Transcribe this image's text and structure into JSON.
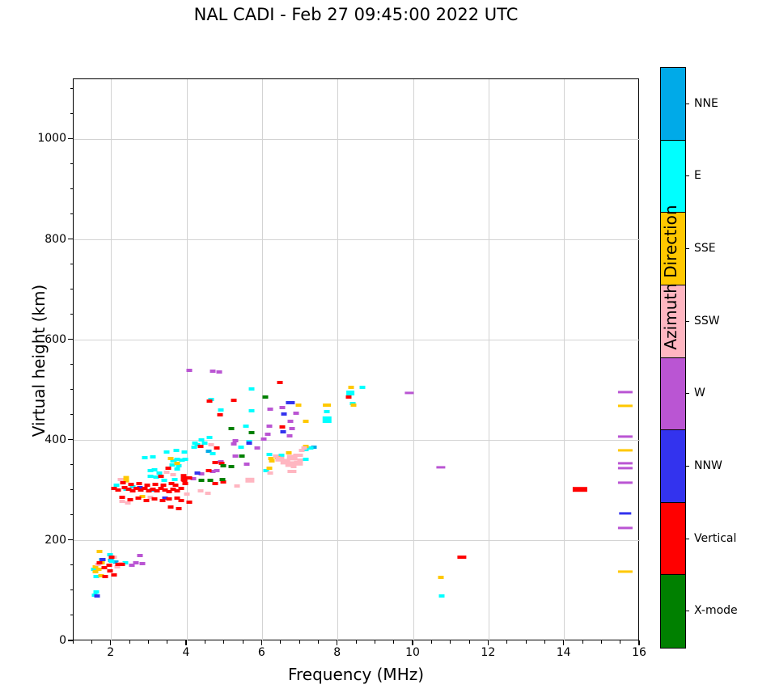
{
  "chart_data": {
    "type": "scatter",
    "title": "NAL CADI - Feb 27 09:45:00 2022 UTC",
    "xlabel": "Frequency (MHz)",
    "ylabel": "Virtual height (km)",
    "xlim": [
      1,
      16
    ],
    "ylim": [
      0,
      1120
    ],
    "xticks": [
      2,
      4,
      6,
      8,
      10,
      12,
      14,
      16
    ],
    "yticks": [
      0,
      200,
      400,
      600,
      800,
      1000
    ],
    "x_minor_step": 0.5,
    "y_minor_step": 50,
    "grid": true,
    "grid_color": "#d3d3d3",
    "colorbar": {
      "label": "Azimuth Direction",
      "categories": [
        {
          "label": "NNE",
          "color": "#00aae8"
        },
        {
          "label": "E",
          "color": "#00ffff"
        },
        {
          "label": "SSE",
          "color": "#ffc800"
        },
        {
          "label": "SSW",
          "color": "#ffb6c1"
        },
        {
          "label": "W",
          "color": "#ba55d3"
        },
        {
          "label": "NNW",
          "color": "#3333ee"
        },
        {
          "label": "Vertical",
          "color": "#ff0000"
        },
        {
          "label": "X-mode",
          "color": "#008000"
        }
      ]
    },
    "series": [
      {
        "name": "NNE",
        "color": "#00aae8",
        "points": [
          [
            1.99,
            161
          ],
          [
            1.75,
            163
          ],
          [
            2.12,
            158
          ],
          [
            3.08,
            301
          ],
          [
            4.58,
            379
          ],
          [
            7.36,
            387
          ]
        ]
      },
      {
        "name": "E",
        "color": "#00ffff",
        "points": [
          [
            1.54,
            144
          ],
          [
            1.96,
            173
          ],
          [
            2.01,
            160
          ],
          [
            1.6,
            129
          ],
          [
            2.37,
            156
          ],
          [
            1.6,
            98
          ],
          [
            1.56,
            92
          ],
          [
            3.03,
            340
          ],
          [
            3.14,
            342
          ],
          [
            3.28,
            335
          ],
          [
            3.03,
            329
          ],
          [
            3.18,
            327
          ],
          [
            3.4,
            321
          ],
          [
            3.68,
            323
          ],
          [
            3.78,
            350
          ],
          [
            3.61,
            352
          ],
          [
            3.66,
            360
          ],
          [
            3.74,
            344
          ],
          [
            2.56,
            308
          ],
          [
            2.39,
            303
          ],
          [
            2.14,
            311
          ],
          [
            3.46,
            377
          ],
          [
            3.72,
            381
          ],
          [
            3.94,
            377
          ],
          [
            3.1,
            368
          ],
          [
            2.89,
            366
          ],
          [
            3.74,
            363
          ],
          [
            3.64,
            360
          ],
          [
            3.87,
            361
          ],
          [
            3.96,
            363
          ],
          [
            4.47,
            395
          ],
          [
            4.28,
            392
          ],
          [
            4.19,
            387
          ],
          [
            4.6,
            406
          ],
          [
            4.69,
            374
          ],
          [
            5.29,
            369
          ],
          [
            4.21,
            395
          ],
          [
            4.39,
            402
          ],
          [
            5.56,
            429
          ],
          [
            5.64,
            398
          ],
          [
            5.43,
            387
          ],
          [
            5.71,
            503
          ],
          [
            4.9,
            461
          ],
          [
            5.71,
            460
          ],
          [
            4.64,
            482
          ],
          [
            6.1,
            340
          ],
          [
            6.18,
            373
          ],
          [
            6.5,
            371
          ],
          [
            7.15,
            382
          ],
          [
            7.15,
            363
          ],
          [
            7.27,
            385
          ],
          [
            7.71,
            458
          ],
          [
            7.71,
            442,
            1.5,
            2
          ],
          [
            8.65,
            506
          ],
          [
            8.33,
            495,
            1.4,
            1.5
          ],
          [
            8.39,
            473
          ],
          [
            10.75,
            90
          ]
        ]
      },
      {
        "name": "SSE",
        "color": "#ffc800",
        "points": [
          [
            1.69,
            179
          ],
          [
            1.75,
            156
          ],
          [
            1.58,
            148
          ],
          [
            1.66,
            144
          ],
          [
            1.58,
            139
          ],
          [
            1.73,
            131
          ],
          [
            2.39,
            323,
            1,
            2.2
          ],
          [
            2.82,
            289
          ],
          [
            3.57,
            365
          ],
          [
            3.74,
            355
          ],
          [
            6.23,
            365
          ],
          [
            6.25,
            360
          ],
          [
            6.4,
            366
          ],
          [
            6.18,
            345
          ],
          [
            6.7,
            376
          ],
          [
            7.15,
            389
          ],
          [
            6.96,
            471
          ],
          [
            7.71,
            471,
            1.4,
            1
          ],
          [
            7.15,
            439
          ],
          [
            8.35,
            506
          ],
          [
            8.41,
            471
          ],
          [
            10.73,
            127
          ],
          [
            15.61,
            469,
            2.6,
            0.8
          ],
          [
            15.61,
            381,
            2.6,
            0.8
          ],
          [
            15.61,
            139,
            2.6,
            0.8
          ]
        ]
      },
      {
        "name": "SSW",
        "color": "#ffb6c1",
        "points": [
          [
            1.64,
            153
          ],
          [
            2.07,
            168
          ],
          [
            2.24,
            155
          ],
          [
            2.16,
            148
          ],
          [
            2.24,
            323
          ],
          [
            3.46,
            337
          ],
          [
            3.64,
            332
          ],
          [
            2.29,
            279
          ],
          [
            2.44,
            276
          ],
          [
            3.04,
            287
          ],
          [
            4.36,
            300
          ],
          [
            4.0,
            294
          ],
          [
            4.64,
            392
          ],
          [
            5.33,
            310
          ],
          [
            4.56,
            295
          ],
          [
            5.67,
            321,
            1.6,
            1.6
          ],
          [
            6.36,
            369
          ],
          [
            6.46,
            363,
            1.6,
            1.6
          ],
          [
            6.61,
            358,
            1.8,
            1.8
          ],
          [
            6.74,
            353,
            1.8,
            1.8
          ],
          [
            6.83,
            348
          ],
          [
            6.21,
            335
          ],
          [
            6.79,
            339,
            1.6,
            1
          ],
          [
            6.89,
            371
          ],
          [
            7.0,
            361
          ],
          [
            6.79,
            366,
            1.8,
            1.8
          ],
          [
            6.96,
            355,
            1.6,
            1.6
          ],
          [
            7.11,
            385
          ],
          [
            7.0,
            371
          ],
          [
            7.04,
            381
          ]
        ]
      },
      {
        "name": "W",
        "color": "#ba55d3",
        "points": [
          [
            2.54,
            152
          ],
          [
            2.65,
            156
          ],
          [
            2.76,
            171
          ],
          [
            2.82,
            155
          ],
          [
            2.65,
            305
          ],
          [
            4.17,
            324
          ],
          [
            4.39,
            334
          ],
          [
            4.69,
            339
          ],
          [
            4.79,
            340
          ],
          [
            4.9,
            358
          ],
          [
            5.59,
            353
          ],
          [
            5.24,
            394
          ],
          [
            5.29,
            400
          ],
          [
            5.86,
            385
          ],
          [
            6.04,
            403
          ],
          [
            6.19,
            429
          ],
          [
            6.14,
            413
          ],
          [
            6.21,
            463
          ],
          [
            6.53,
            465
          ],
          [
            4.06,
            540
          ],
          [
            4.69,
            539
          ],
          [
            4.86,
            536
          ],
          [
            5.29,
            369
          ],
          [
            6.89,
            455
          ],
          [
            6.74,
            439
          ],
          [
            6.79,
            424
          ],
          [
            6.72,
            410
          ],
          [
            9.89,
            495,
            1.6,
            0.8
          ],
          [
            10.73,
            347,
            1.6,
            0.8
          ],
          [
            15.61,
            497,
            2.6,
            0.8
          ],
          [
            15.61,
            408,
            2.6,
            0.8
          ],
          [
            15.61,
            355,
            2.6,
            0.8
          ],
          [
            15.61,
            345,
            2.6,
            0.8
          ],
          [
            15.61,
            316,
            2.6,
            0.8
          ],
          [
            15.61,
            226,
            2.6,
            0.8
          ]
        ]
      },
      {
        "name": "NNW",
        "color": "#3333ee",
        "points": [
          [
            1.78,
            163
          ],
          [
            1.62,
            90
          ],
          [
            4.28,
            336
          ],
          [
            5.64,
            395
          ],
          [
            6.55,
            418
          ],
          [
            6.74,
            476,
            1.6,
            1
          ],
          [
            6.57,
            453
          ],
          [
            3.42,
            286
          ],
          [
            2.76,
            306
          ],
          [
            15.61,
            255,
            2.2,
            0.8
          ]
        ]
      },
      {
        "name": "Vertical",
        "color": "#ff0000",
        "points": [
          [
            1.69,
            156
          ],
          [
            1.81,
            147
          ],
          [
            1.96,
            140
          ],
          [
            2.07,
            132
          ],
          [
            1.84,
            129
          ],
          [
            2.01,
            168
          ],
          [
            2.18,
            153
          ],
          [
            2.29,
            153
          ],
          [
            1.94,
            152
          ],
          [
            2.07,
            305
          ],
          [
            2.18,
            302
          ],
          [
            2.35,
            306
          ],
          [
            2.46,
            303
          ],
          [
            2.56,
            300
          ],
          [
            2.67,
            305
          ],
          [
            2.78,
            302
          ],
          [
            2.89,
            305
          ],
          [
            2.99,
            300
          ],
          [
            3.1,
            303
          ],
          [
            3.21,
            300
          ],
          [
            3.31,
            305
          ],
          [
            3.42,
            302
          ],
          [
            3.53,
            298
          ],
          [
            3.64,
            303
          ],
          [
            3.74,
            300
          ],
          [
            3.85,
            305
          ],
          [
            2.31,
            316
          ],
          [
            2.52,
            313
          ],
          [
            2.74,
            315
          ],
          [
            2.95,
            311
          ],
          [
            3.16,
            313
          ],
          [
            3.38,
            311
          ],
          [
            3.59,
            315
          ],
          [
            3.7,
            311
          ],
          [
            3.91,
            326,
            1,
            2.4
          ],
          [
            3.94,
            321
          ],
          [
            3.96,
            315
          ],
          [
            4.06,
            326
          ],
          [
            2.29,
            287
          ],
          [
            2.5,
            282
          ],
          [
            2.71,
            285
          ],
          [
            2.93,
            281
          ],
          [
            3.14,
            284
          ],
          [
            3.36,
            281
          ],
          [
            3.53,
            284
          ],
          [
            3.74,
            285
          ],
          [
            3.85,
            281
          ],
          [
            4.06,
            277
          ],
          [
            3.57,
            268
          ],
          [
            3.78,
            265
          ],
          [
            3.31,
            329
          ],
          [
            3.51,
            345
          ],
          [
            4.58,
            340
          ],
          [
            4.75,
            356
          ],
          [
            4.36,
            389
          ],
          [
            4.79,
            385
          ],
          [
            4.92,
            355
          ],
          [
            4.75,
            315
          ],
          [
            4.96,
            318
          ],
          [
            4.6,
            479
          ],
          [
            5.24,
            481
          ],
          [
            4.88,
            452
          ],
          [
            6.46,
            516
          ],
          [
            6.53,
            427
          ],
          [
            8.29,
            487
          ],
          [
            11.29,
            168,
            1.6,
            1
          ],
          [
            14.42,
            303,
            2.6,
            1.4
          ]
        ]
      },
      {
        "name": "X-mode",
        "color": "#008000",
        "points": [
          [
            5.18,
            424
          ],
          [
            6.08,
            486
          ],
          [
            5.46,
            369
          ],
          [
            5.18,
            348
          ],
          [
            4.94,
            323
          ],
          [
            4.39,
            321
          ],
          [
            4.62,
            321
          ],
          [
            5.71,
            416
          ],
          [
            4.96,
            350
          ]
        ]
      }
    ]
  }
}
